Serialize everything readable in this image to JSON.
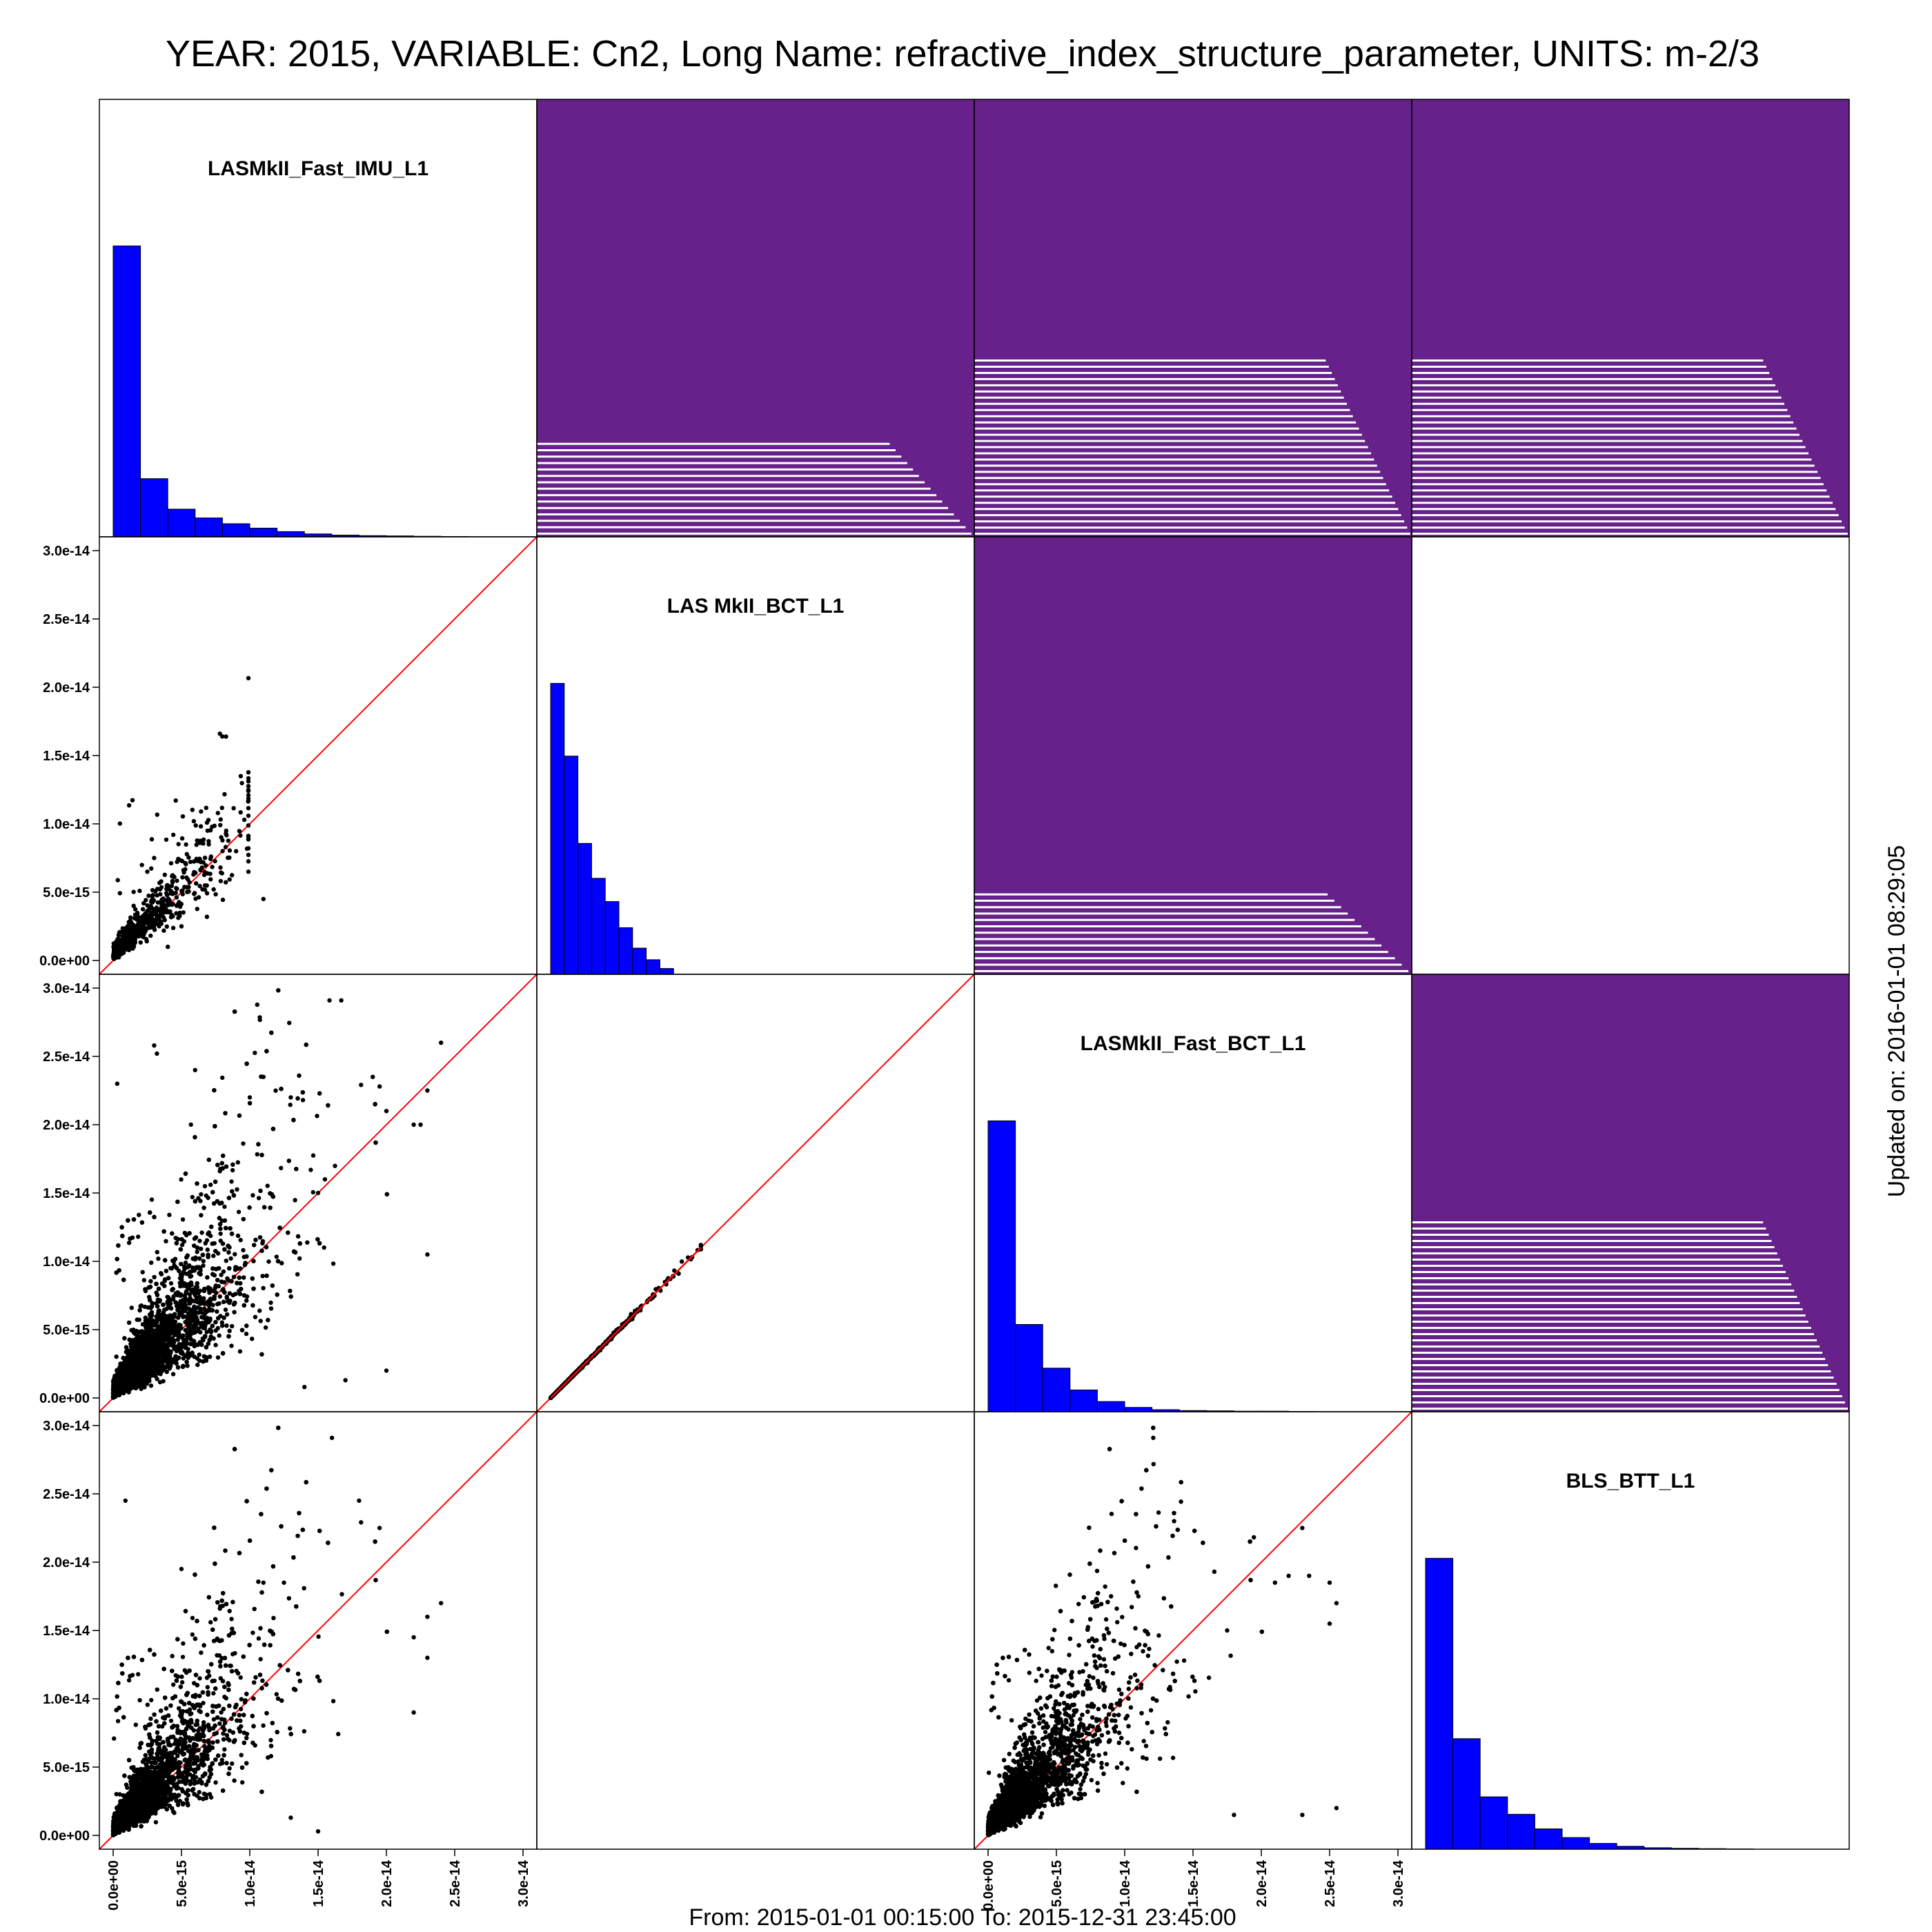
{
  "title": "YEAR: 2015, VARIABLE: Cn2, Long Name: refractive_index_structure_parameter, UNITS: m-2/3",
  "footer": "From: 2015-01-01 00:15:00 To: 2015-12-31 23:45:00",
  "updated": "Updated on: 2016-01-01 08:29:05",
  "colors": {
    "histogram": "#0000ff",
    "diagonal": "#ff0000",
    "points": "#000000",
    "coverage": "#66228a"
  },
  "chart_data": {
    "type": "scatter",
    "variables": [
      "LASMkII_Fast_IMU_L1",
      "LAS MkII_BCT_L1",
      "LASMkII_Fast_BCT_L1",
      "BLS_BTT_L1"
    ],
    "axis": {
      "range": [
        0,
        3e-14
      ],
      "ticks": [
        0,
        5e-15,
        1e-14,
        1.5e-14,
        2e-14,
        2.5e-14,
        3e-14
      ],
      "tick_labels": [
        "0.0e+00",
        "5.0e-15",
        "1.0e-14",
        "1.5e-14",
        "2.0e-14",
        "2.5e-14",
        "3.0e-14"
      ]
    },
    "histograms": [
      {
        "variable": "LASMkII_Fast_IMU_L1",
        "bin_width": 2e-15,
        "relative_counts": [
          1.0,
          0.2,
          0.095,
          0.065,
          0.045,
          0.03,
          0.018,
          0.01,
          0.006,
          0.004,
          0.003,
          0.002,
          0.001
        ]
      },
      {
        "variable": "LAS MkII_BCT_L1",
        "bin_width": 1e-15,
        "relative_counts": [
          1.0,
          0.75,
          0.45,
          0.33,
          0.25,
          0.16,
          0.09,
          0.05,
          0.02
        ]
      },
      {
        "variable": "LASMkII_Fast_BCT_L1",
        "bin_width": 2e-15,
        "relative_counts": [
          1.0,
          0.3,
          0.15,
          0.075,
          0.035,
          0.015,
          0.007,
          0.004,
          0.003,
          0.002,
          0.002,
          0.001
        ]
      },
      {
        "variable": "BLS_BTT_L1",
        "bin_width": 2e-15,
        "relative_counts": [
          1.0,
          0.38,
          0.18,
          0.12,
          0.07,
          0.04,
          0.02,
          0.01,
          0.005,
          0.003,
          0.002,
          0.001
        ]
      }
    ],
    "coverage": [
      {
        "row": 0,
        "col": 1,
        "fill_fraction": 0.22
      },
      {
        "row": 0,
        "col": 2,
        "fill_fraction": 0.41
      },
      {
        "row": 0,
        "col": 3,
        "fill_fraction": 0.41
      },
      {
        "row": 1,
        "col": 2,
        "fill_fraction": 0.19
      },
      {
        "row": 2,
        "col": 3,
        "fill_fraction": 0.44
      }
    ],
    "scatter_panels": [
      {
        "row": 1,
        "col": 0,
        "x_variable": "LASMkII_Fast_IMU_L1",
        "y_variable": "LAS MkII_BCT_L1",
        "n": 700,
        "x_max": 1.1e-14,
        "points": [
          [
            1.1e-14,
            4.5e-15
          ],
          [
            9e-15,
            8e-15
          ],
          [
            8e-15,
            8.8e-15
          ],
          [
            7e-15,
            8.5e-15
          ],
          [
            3e-15,
            7.5e-15
          ],
          [
            2.5e-15,
            6.5e-15
          ],
          [
            5e-15,
            2.5e-15
          ],
          [
            4e-15,
            1e-15
          ],
          [
            1.5e-15,
            4e-15
          ],
          [
            6.5e-15,
            6.8e-15
          ]
        ]
      },
      {
        "row": 2,
        "col": 0,
        "x_variable": "LASMkII_Fast_IMU_L1",
        "y_variable": "LASMkII_Fast_BCT_L1",
        "n": 5500,
        "x_max": 2.4e-14,
        "points": [
          [
            2.4e-14,
            2.6e-14
          ],
          [
            2.3e-14,
            2.25e-14
          ],
          [
            2.2e-14,
            2e-14
          ],
          [
            2e-14,
            2.1e-14
          ],
          [
            1.95e-14,
            2.28e-14
          ],
          [
            1.9e-14,
            2.35e-14
          ],
          [
            2.25e-14,
            2e-14
          ],
          [
            2e-14,
            2e-15
          ],
          [
            3e-15,
            2.58e-14
          ],
          [
            3.2e-15,
            2.52e-14
          ],
          [
            3e-16,
            2.3e-14
          ],
          [
            1.1e-14,
            2.35e-14
          ],
          [
            6e-15,
            2.4e-14
          ],
          [
            1.3e-14,
            2.2e-14
          ],
          [
            1e-14,
            2.2e-14
          ],
          [
            2.3e-14,
            1.05e-14
          ],
          [
            1.7e-14,
            1.3e-15
          ],
          [
            1.4e-14,
            8e-16
          ],
          [
            1.55e-14,
            1.6e-14
          ],
          [
            1.5e-14,
            1.5e-14
          ]
        ]
      },
      {
        "row": 2,
        "col": 1,
        "x_variable": "LAS MkII_BCT_L1",
        "y_variable": "LASMkII_Fast_BCT_L1",
        "n": 700,
        "x_max": 1.1e-14,
        "kind": "identity"
      },
      {
        "row": 3,
        "col": 0,
        "x_variable": "LASMkII_Fast_IMU_L1",
        "y_variable": "BLS_BTT_L1",
        "n": 5500,
        "x_max": 2.4e-14,
        "points": [
          [
            1.8e-14,
            2.45e-14
          ],
          [
            1.95e-14,
            2.25e-14
          ],
          [
            9e-16,
            2.45e-14
          ],
          [
            5e-15,
            1.95e-14
          ],
          [
            1.1e-14,
            1.85e-14
          ],
          [
            1.25e-14,
            1.85e-14
          ],
          [
            2.4e-14,
            1.7e-14
          ],
          [
            2.3e-14,
            1.6e-14
          ],
          [
            2.2e-14,
            1.45e-14
          ],
          [
            2.3e-14,
            1.3e-14
          ],
          [
            1.5e-14,
            3e-16
          ],
          [
            1.3e-14,
            1.3e-15
          ],
          [
            2.2e-14,
            9e-15
          ]
        ]
      },
      {
        "row": 3,
        "col": 2,
        "x_variable": "LASMkII_Fast_BCT_L1",
        "y_variable": "BLS_BTT_L1",
        "n": 5000,
        "x_max": 2.6e-14,
        "points": [
          [
            2.3e-14,
            2.25e-14
          ],
          [
            2.55e-14,
            1.7e-14
          ],
          [
            2.5e-14,
            1.55e-14
          ],
          [
            2.5e-14,
            1.85e-14
          ],
          [
            2.2e-14,
            1.9e-14
          ],
          [
            2.35e-14,
            1.9e-14
          ],
          [
            2.1e-14,
            1.85e-14
          ],
          [
            1.8e-14,
            1.5e-15
          ],
          [
            2.3e-14,
            1.5e-15
          ],
          [
            2.55e-14,
            2e-15
          ],
          [
            1.1e-14,
            1.75e-14
          ],
          [
            9e-15,
            1.75e-14
          ],
          [
            1.75e-14,
            1.5e-14
          ]
        ]
      }
    ]
  }
}
